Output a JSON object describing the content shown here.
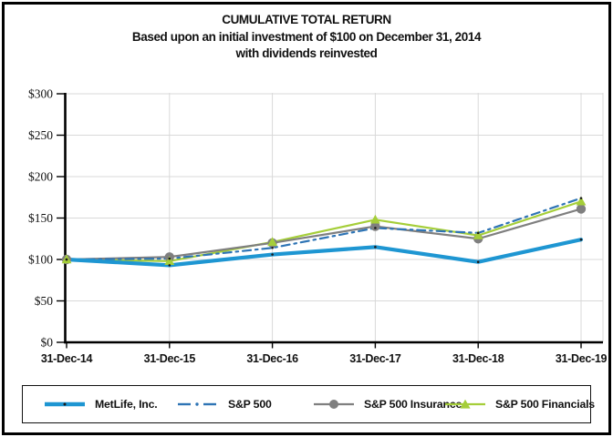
{
  "title": {
    "line1": "CUMULATIVE TOTAL RETURN",
    "line2": "Based upon an initial investment of $100 on December 31, 2014",
    "line3": "with dividends reinvested"
  },
  "chart_data": {
    "type": "line",
    "categories": [
      "31-Dec-14",
      "31-Dec-15",
      "31-Dec-16",
      "31-Dec-17",
      "31-Dec-18",
      "31-Dec-19"
    ],
    "series": [
      {
        "name": "MetLife, Inc.",
        "color": "#1E96D2",
        "style": "solid-thick",
        "marker": "dot",
        "values": [
          100,
          93,
          106,
          115,
          97,
          124
        ]
      },
      {
        "name": "S&P 500",
        "color": "#2E74B5",
        "style": "dash-dot",
        "marker": "dot",
        "values": [
          100,
          101,
          114,
          138,
          132,
          174
        ]
      },
      {
        "name": "S&P 500 Insurance",
        "color": "#7F7F7F",
        "style": "solid",
        "marker": "circle",
        "values": [
          100,
          103,
          120,
          140,
          125,
          161
        ]
      },
      {
        "name": "S&P 500 Financials",
        "color": "#A5CE39",
        "style": "solid",
        "marker": "triangle",
        "values": [
          100,
          98,
          121,
          148,
          129,
          170
        ]
      }
    ],
    "ylim": [
      0,
      300
    ],
    "ytick_step": 50,
    "ytick_labels": [
      "$0",
      "$50",
      "$100",
      "$150",
      "$200",
      "$250",
      "$300"
    ],
    "grid": true,
    "legend_position": "bottom",
    "colors": {
      "grid": "#D9D9D9",
      "axis": "#000000",
      "tiny_dot": "#1a1a1a"
    }
  }
}
